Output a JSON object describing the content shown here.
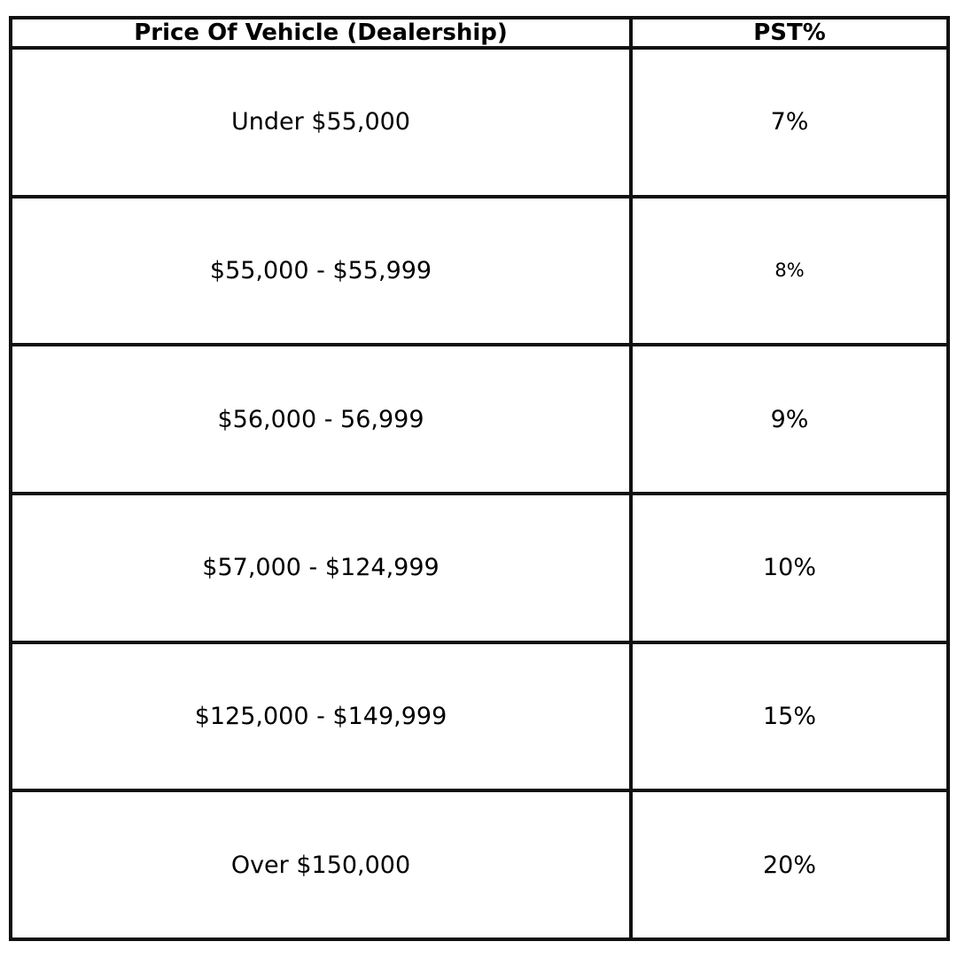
{
  "table": {
    "header": [
      "Price Of Vehicle (Dealership)",
      "PST%"
    ],
    "rows": [
      [
        "Under $55,000",
        "7%"
      ],
      [
        "$55,000 - $55,999",
        "8%"
      ],
      [
        "$56,000 - 56,999",
        "9%"
      ],
      [
        "$57,000 - $124,999",
        "10%"
      ],
      [
        "$125,000 - $149,999",
        "15%"
      ],
      [
        "Over $150,000",
        "20%"
      ]
    ]
  }
}
